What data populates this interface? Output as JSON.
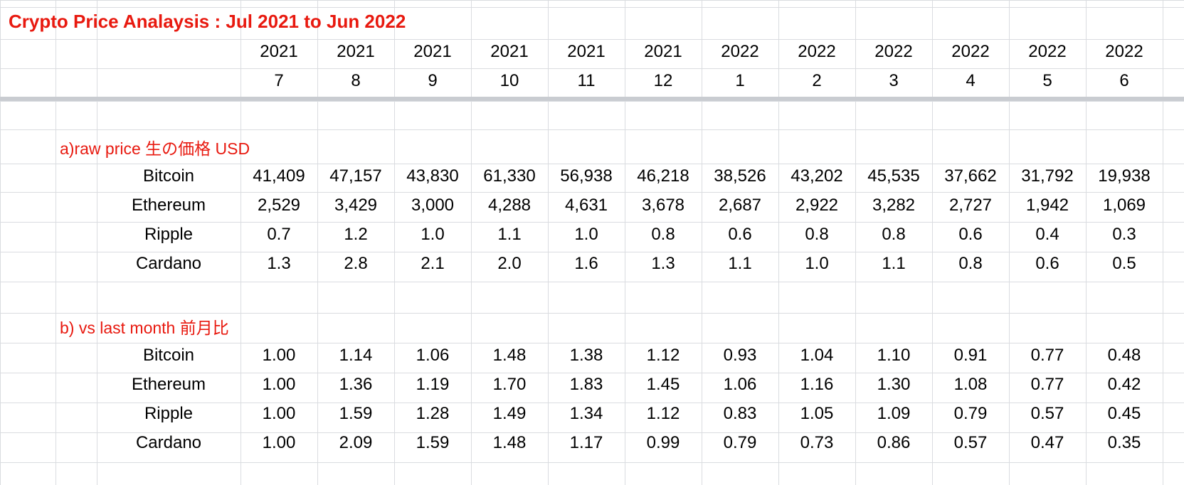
{
  "title": "Crypto Price Analaysis : Jul 2021 to Jun 2022",
  "years": [
    "2021",
    "2021",
    "2021",
    "2021",
    "2021",
    "2021",
    "2022",
    "2022",
    "2022",
    "2022",
    "2022",
    "2022"
  ],
  "months": [
    "7",
    "8",
    "9",
    "10",
    "11",
    "12",
    "1",
    "2",
    "3",
    "4",
    "5",
    "6"
  ],
  "section_a": {
    "label": "a)raw price 生の価格 USD",
    "rows": [
      {
        "name": "Bitcoin",
        "values": [
          "41,409",
          "47,157",
          "43,830",
          "61,330",
          "56,938",
          "46,218",
          "38,526",
          "43,202",
          "45,535",
          "37,662",
          "31,792",
          "19,938"
        ]
      },
      {
        "name": "Ethereum",
        "values": [
          "2,529",
          "3,429",
          "3,000",
          "4,288",
          "4,631",
          "3,678",
          "2,687",
          "2,922",
          "3,282",
          "2,727",
          "1,942",
          "1,069"
        ]
      },
      {
        "name": "Ripple",
        "values": [
          "0.7",
          "1.2",
          "1.0",
          "1.1",
          "1.0",
          "0.8",
          "0.6",
          "0.8",
          "0.8",
          "0.6",
          "0.4",
          "0.3"
        ]
      },
      {
        "name": "Cardano",
        "values": [
          "1.3",
          "2.8",
          "2.1",
          "2.0",
          "1.6",
          "1.3",
          "1.1",
          "1.0",
          "1.1",
          "0.8",
          "0.6",
          "0.5"
        ]
      }
    ]
  },
  "section_b": {
    "label": "b) vs last month 前月比",
    "rows": [
      {
        "name": "Bitcoin",
        "values": [
          "1.00",
          "1.14",
          "1.06",
          "1.48",
          "1.38",
          "1.12",
          "0.93",
          "1.04",
          "1.10",
          "0.91",
          "0.77",
          "0.48"
        ]
      },
      {
        "name": "Ethereum",
        "values": [
          "1.00",
          "1.36",
          "1.19",
          "1.70",
          "1.83",
          "1.45",
          "1.06",
          "1.16",
          "1.30",
          "1.08",
          "0.77",
          "0.42"
        ]
      },
      {
        "name": "Ripple",
        "values": [
          "1.00",
          "1.59",
          "1.28",
          "1.49",
          "1.34",
          "1.12",
          "0.83",
          "1.05",
          "1.09",
          "0.79",
          "0.57",
          "0.45"
        ]
      },
      {
        "name": "Cardano",
        "values": [
          "1.00",
          "2.09",
          "1.59",
          "1.48",
          "1.17",
          "0.99",
          "0.79",
          "0.73",
          "0.86",
          "0.57",
          "0.47",
          "0.35"
        ]
      }
    ]
  },
  "colors": {
    "accent_red": "#e8190f",
    "grid": "#dadce0",
    "freeze_bar": "#c9ccd1"
  }
}
